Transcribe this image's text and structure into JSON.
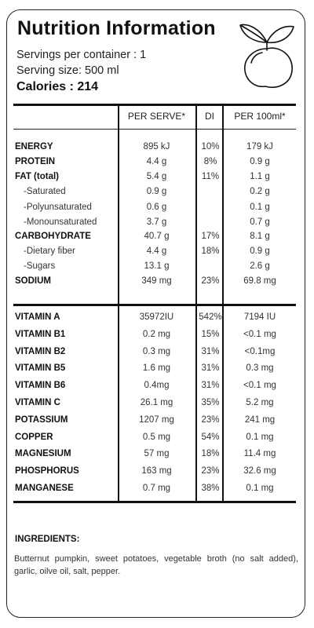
{
  "header": {
    "title": "Nutrition Information",
    "servings": "Servings per container : 1",
    "serving_size": "Serving size: 500 ml",
    "calories": "Calories : 214",
    "logo_icon": "lemon-icon"
  },
  "table": {
    "columns": [
      "PER SERVE*",
      "DI",
      "PER  100ml*"
    ],
    "nutrients": [
      {
        "name": "ENERGY",
        "serve": "895 kJ",
        "di": "10%",
        "per100": "179 kJ",
        "style": "bold"
      },
      {
        "name": "PROTEIN",
        "serve": "4.4 g",
        "di": "8%",
        "per100": "0.9 g",
        "style": "bold"
      },
      {
        "name": "FAT (total)",
        "serve": "5.4 g",
        "di": "11%",
        "per100": "1.1 g",
        "style": "bold"
      },
      {
        "name": "-Saturated",
        "serve": "0.9 g",
        "di": "",
        "per100": "0.2 g",
        "style": "sub"
      },
      {
        "name": "-Polyunsaturated",
        "serve": "0.6 g",
        "di": "",
        "per100": "0.1 g",
        "style": "sub"
      },
      {
        "name": "-Monounsaturated",
        "serve": "3.7 g",
        "di": "",
        "per100": "0.7 g",
        "style": "sub"
      },
      {
        "name": "CARBOHYDRATE",
        "serve": "40.7 g",
        "di": "17%",
        "per100": "8.1 g",
        "style": "bold"
      },
      {
        "name": "-Dietary fiber",
        "serve": "4.4 g",
        "di": "18%",
        "per100": "0.9 g",
        "style": "sub"
      },
      {
        "name": "-Sugars",
        "serve": "13.1 g",
        "di": "",
        "per100": "2.6 g",
        "style": "sub"
      },
      {
        "name": "SODIUM",
        "serve": "349 mg",
        "di": "23%",
        "per100": "69.8 mg",
        "style": "bold"
      }
    ],
    "vitamins": [
      {
        "name": "VITAMIN A",
        "serve": "35972IU",
        "di": "542%",
        "per100": "7194 IU"
      },
      {
        "name": "VITAMIN B1",
        "serve": "0.2 mg",
        "di": "15%",
        "per100": "<0.1 mg"
      },
      {
        "name": "VITAMIN B2",
        "serve": "0.3 mg",
        "di": "31%",
        "per100": "<0.1mg"
      },
      {
        "name": "VITAMIN B5",
        "serve": "1.6 mg",
        "di": "31%",
        "per100": "0.3 mg"
      },
      {
        "name": "VITAMIN B6",
        "serve": "0.4mg",
        "di": "31%",
        "per100": "<0.1 mg"
      },
      {
        "name": "VITAMIN C",
        "serve": "26.1 mg",
        "di": "35%",
        "per100": "5.2 mg"
      },
      {
        "name": "POTASSIUM",
        "serve": "1207 mg",
        "di": "23%",
        "per100": "241 mg"
      },
      {
        "name": "COPPER",
        "serve": "0.5 mg",
        "di": "54%",
        "per100": "0.1 mg"
      },
      {
        "name": "MAGNESIUM",
        "serve": "57 mg",
        "di": "18%",
        "per100": "11.4 mg"
      },
      {
        "name": "PHOSPHORUS",
        "serve": "163 mg",
        "di": "23%",
        "per100": "32.6 mg"
      },
      {
        "name": "MANGANESE",
        "serve": "0.7 mg",
        "di": "38%",
        "per100": "0.1 mg"
      }
    ]
  },
  "ingredients": {
    "title": "INGREDIENTS:",
    "text": "Butternut pumpkin, sweet potatoes, vegetable broth (no salt added), garlic, oilve oil, salt, pepper."
  }
}
